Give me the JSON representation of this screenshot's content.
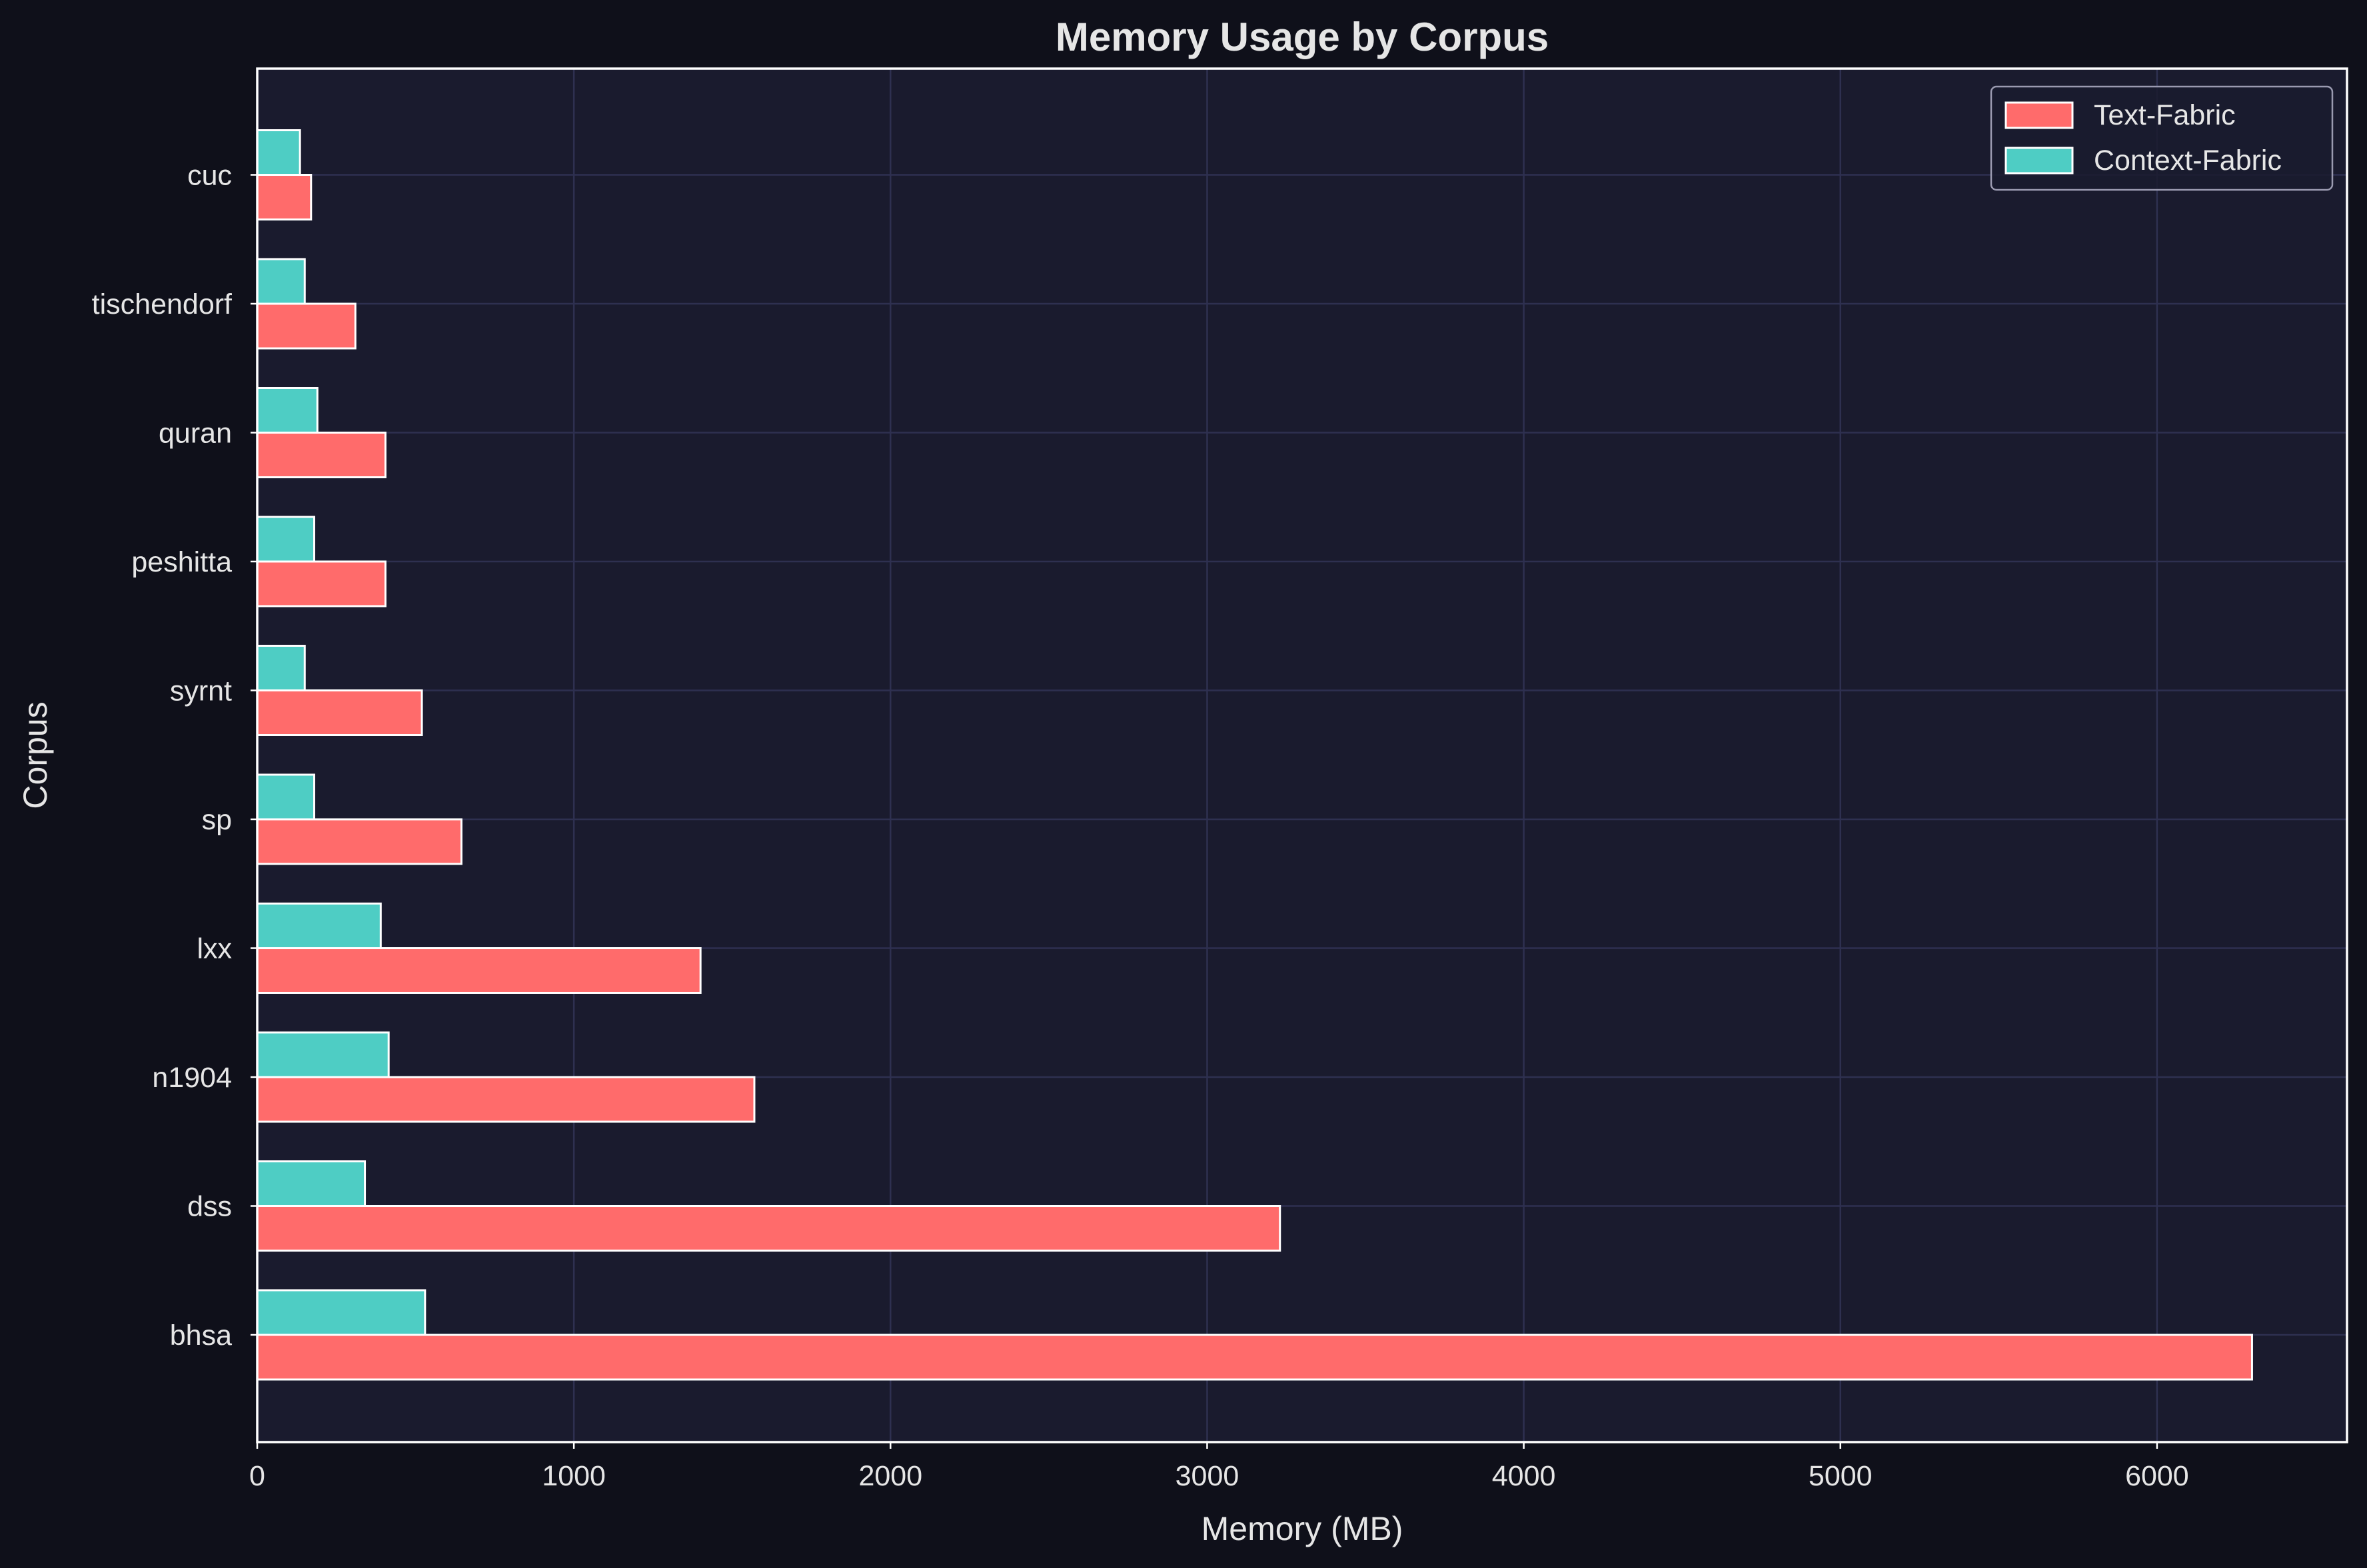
{
  "chart_data": {
    "type": "bar",
    "orientation": "horizontal",
    "title": "Memory Usage by Corpus",
    "xlabel": "Memory (MB)",
    "ylabel": "Corpus",
    "xlim": [
      0,
      6600
    ],
    "xticks": [
      0,
      1000,
      2000,
      3000,
      4000,
      5000,
      6000
    ],
    "categories": [
      "bhsa",
      "dss",
      "n1904",
      "lxx",
      "sp",
      "syrnt",
      "peshitta",
      "quran",
      "tischendorf",
      "cuc"
    ],
    "series": [
      {
        "name": "Text-Fabric",
        "color": "#ff6b6b",
        "values": [
          6300,
          3230,
          1570,
          1400,
          645,
          520,
          405,
          405,
          310,
          170
        ]
      },
      {
        "name": "Context-Fabric",
        "color": "#4ecdc4",
        "values": [
          530,
          340,
          415,
          390,
          180,
          150,
          180,
          190,
          150,
          135
        ]
      }
    ],
    "legend_position": "top-right",
    "grid": true
  },
  "colors": {
    "figure_background": "#0f101a",
    "plot_background": "#1a1b2e",
    "grid": "#2e3050",
    "text": "#e6e6e6",
    "axes_edge": "#ffffff"
  }
}
